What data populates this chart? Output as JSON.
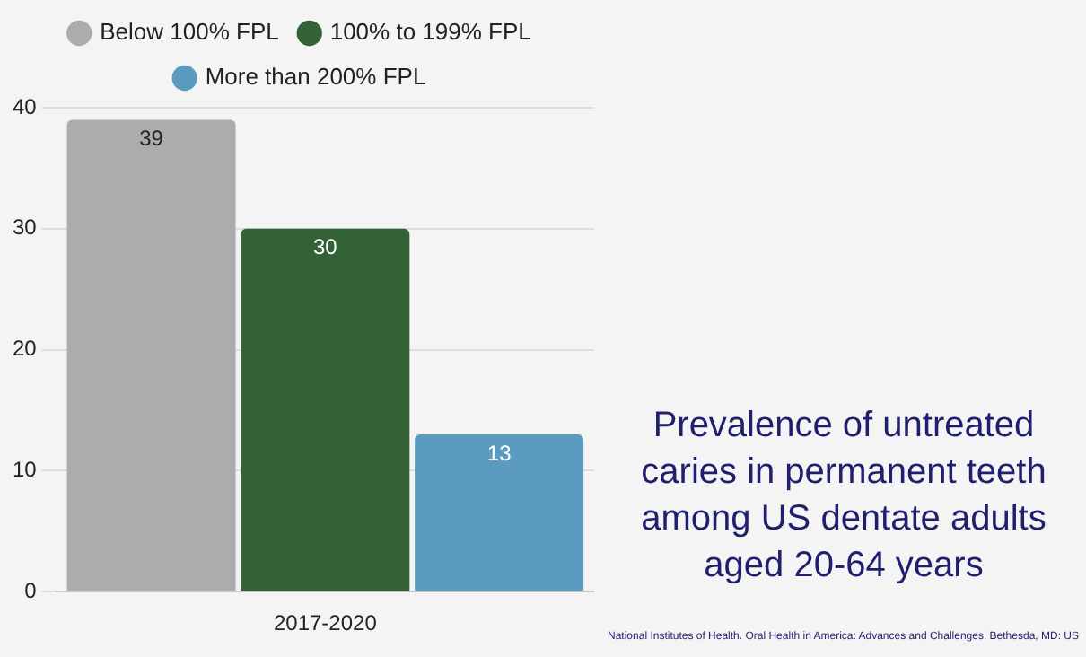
{
  "chart_data": {
    "type": "bar",
    "title": "Prevalence of untreated caries in permanent teeth among US dentate adults aged 20-64 years",
    "categories": [
      "2017-2020"
    ],
    "series": [
      {
        "name": "Below 100% FPL",
        "color": "#acacac",
        "values": [
          39
        ]
      },
      {
        "name": "100% to 199% FPL",
        "color": "#336236",
        "values": [
          30
        ]
      },
      {
        "name": "More than 200% FPL",
        "color": "#5b9bc0",
        "values": [
          13
        ]
      }
    ],
    "ylim": [
      0,
      40
    ],
    "yticks": [
      0,
      10,
      20,
      30,
      40
    ],
    "grid": "y",
    "legend": "top",
    "data_labels": true,
    "annotations": [
      "National Institutes of Health. Oral Health in America: Advances and Challenges. Bethesda, MD: US"
    ]
  }
}
